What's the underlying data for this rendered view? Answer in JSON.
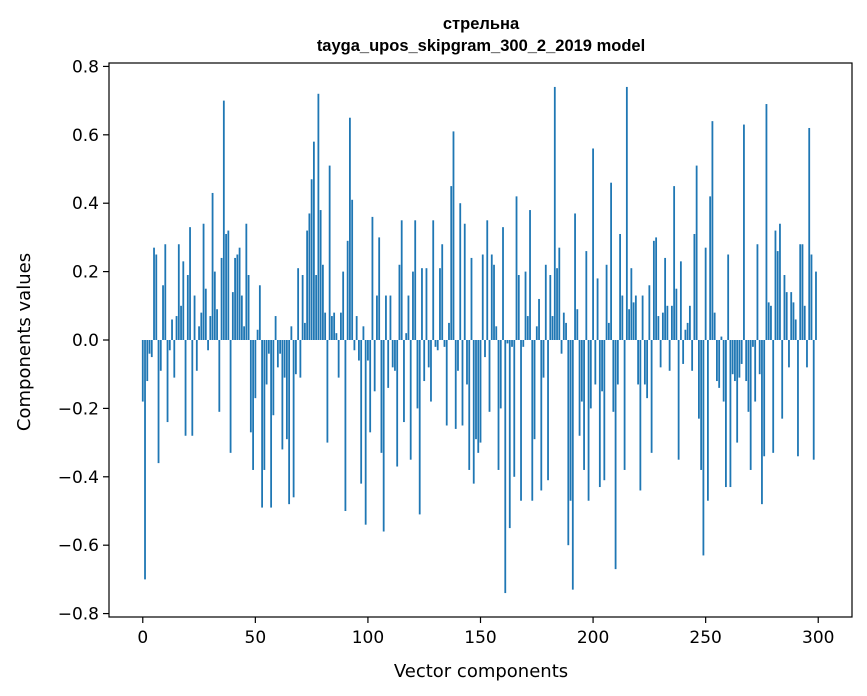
{
  "chart_data": {
    "type": "bar",
    "title": "стрельна",
    "subtitle": "tayga_upos_skipgram_300_2_2019 model",
    "xlabel": "Vector components",
    "ylabel": "Components values",
    "xlim": [
      -15,
      315
    ],
    "ylim": [
      -0.81,
      0.81
    ],
    "xticks": [
      0,
      50,
      100,
      150,
      200,
      250,
      300
    ],
    "yticks": [
      -0.8,
      -0.6,
      -0.4,
      -0.2,
      0.0,
      0.2,
      0.4,
      0.6,
      0.8
    ],
    "ytick_labels": [
      "−0.8",
      "−0.6",
      "−0.4",
      "−0.2",
      "0.0",
      "0.2",
      "0.4",
      "0.6",
      "0.8"
    ],
    "bar_color": "#1f77b4",
    "values": [
      -0.18,
      -0.7,
      -0.12,
      -0.04,
      -0.05,
      0.27,
      0.25,
      -0.36,
      -0.09,
      0.16,
      0.28,
      -0.24,
      -0.03,
      0.06,
      -0.11,
      0.07,
      0.28,
      0.1,
      0.23,
      -0.28,
      0.19,
      0.33,
      -0.28,
      0.13,
      -0.09,
      0.04,
      0.08,
      0.34,
      0.15,
      -0.03,
      0.07,
      0.43,
      0.2,
      0.09,
      -0.21,
      0.24,
      0.7,
      0.31,
      0.32,
      -0.33,
      0.14,
      0.24,
      0.25,
      0.27,
      0.13,
      0.04,
      0.34,
      0.19,
      -0.27,
      -0.38,
      -0.17,
      0.03,
      0.16,
      -0.49,
      -0.38,
      -0.13,
      -0.04,
      -0.49,
      -0.22,
      0.07,
      -0.08,
      -0.04,
      -0.32,
      -0.11,
      -0.29,
      -0.48,
      0.04,
      -0.46,
      -0.1,
      0.21,
      -0.11,
      0.19,
      0.05,
      0.32,
      0.37,
      0.47,
      0.58,
      0.19,
      0.72,
      0.38,
      0.22,
      0.08,
      -0.3,
      0.51,
      0.07,
      0.08,
      0.02,
      -0.11,
      0.08,
      0.2,
      -0.5,
      0.29,
      0.65,
      0.41,
      -0.03,
      0.07,
      -0.06,
      -0.42,
      0.04,
      -0.54,
      -0.06,
      -0.27,
      0.36,
      -0.15,
      0.13,
      0.3,
      -0.33,
      -0.56,
      0.13,
      -0.14,
      0.13,
      -0.08,
      -0.09,
      -0.37,
      0.22,
      0.35,
      -0.24,
      0.02,
      0.13,
      -0.35,
      0.2,
      0.35,
      -0.2,
      -0.51,
      0.21,
      -0.12,
      0.21,
      -0.08,
      -0.18,
      0.35,
      -0.02,
      -0.03,
      0.21,
      0.28,
      -0.02,
      -0.25,
      0.05,
      0.45,
      0.61,
      -0.26,
      -0.09,
      0.4,
      -0.25,
      0.34,
      -0.13,
      -0.38,
      0.24,
      -0.42,
      -0.29,
      -0.33,
      -0.3,
      0.25,
      -0.05,
      0.35,
      -0.21,
      0.25,
      0.22,
      0.04,
      -0.38,
      -0.2,
      0.33,
      -0.74,
      -0.01,
      -0.55,
      -0.02,
      -0.4,
      0.42,
      0.19,
      -0.47,
      -0.02,
      0.2,
      0.07,
      0.38,
      -0.47,
      -0.29,
      0.04,
      0.12,
      -0.44,
      -0.11,
      0.22,
      -0.41,
      0.19,
      0.07,
      0.74,
      0.21,
      0.27,
      -0.04,
      0.08,
      0.05,
      -0.6,
      -0.47,
      -0.73,
      0.37,
      0.09,
      -0.28,
      -0.18,
      -0.38,
      0.26,
      -0.47,
      -0.2,
      0.56,
      -0.13,
      0.18,
      -0.43,
      -0.15,
      -0.41,
      0.22,
      0.05,
      0.46,
      -0.21,
      -0.67,
      -0.13,
      0.31,
      0.13,
      -0.38,
      0.74,
      0.09,
      0.21,
      0.11,
      0.13,
      -0.13,
      -0.44,
      0.13,
      -0.13,
      -0.17,
      0.16,
      -0.33,
      0.29,
      0.3,
      0.07,
      -0.08,
      0.08,
      0.24,
      0.1,
      -0.09,
      0.1,
      0.45,
      0.15,
      -0.35,
      0.23,
      -0.07,
      0.03,
      0.05,
      0.1,
      -0.09,
      0.31,
      0.51,
      -0.23,
      -0.38,
      -0.63,
      0.27,
      -0.47,
      0.42,
      0.64,
      0.08,
      -0.12,
      -0.14,
      0.01,
      -0.18,
      -0.43,
      0.25,
      -0.43,
      -0.1,
      -0.12,
      -0.3,
      -0.11,
      -0.07,
      0.63,
      -0.12,
      -0.21,
      -0.38,
      -0.02,
      -0.18,
      0.28,
      -0.1,
      -0.48,
      -0.34,
      0.69,
      0.11,
      0.1,
      -0.33,
      0.32,
      0.26,
      0.34,
      -0.23,
      0.19,
      0.14,
      -0.08,
      0.14,
      0.11,
      0.06,
      -0.34,
      0.28,
      0.28,
      0.1,
      -0.08,
      0.62,
      0.25,
      -0.35,
      0.2
    ]
  }
}
